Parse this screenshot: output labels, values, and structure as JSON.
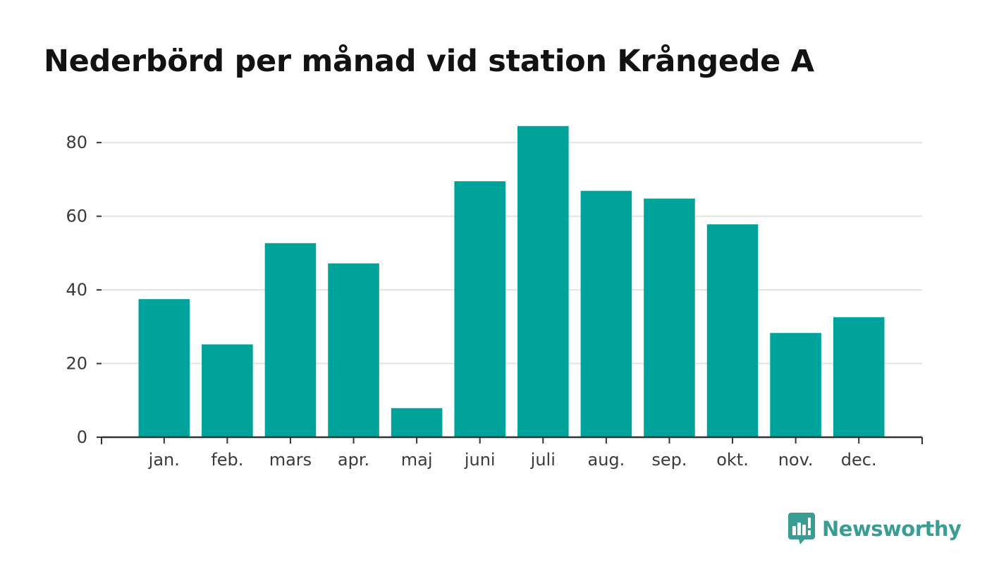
{
  "colors": {
    "bar": "#00a39a",
    "grid": "#e2e2e2",
    "axis": "#333333",
    "brand": "#3a9d94"
  },
  "brand": {
    "name": "Newsworthy",
    "logo_icon": "bar-chart-speech-bubble-icon"
  },
  "chart_data": {
    "type": "bar",
    "title": "Nederbörd per månad vid station Krångede A",
    "xlabel": "",
    "ylabel": "",
    "categories": [
      "jan.",
      "feb.",
      "mars",
      "apr.",
      "maj",
      "juni",
      "juli",
      "aug.",
      "sep.",
      "okt.",
      "nov.",
      "dec."
    ],
    "values": [
      37.5,
      25.2,
      52.7,
      47.2,
      7.9,
      69.5,
      84.5,
      66.9,
      64.8,
      57.8,
      28.3,
      32.6
    ],
    "ylim": [
      0,
      90
    ],
    "yticks": [
      0,
      20,
      40,
      60,
      80
    ],
    "grid": true,
    "legend": "none"
  }
}
